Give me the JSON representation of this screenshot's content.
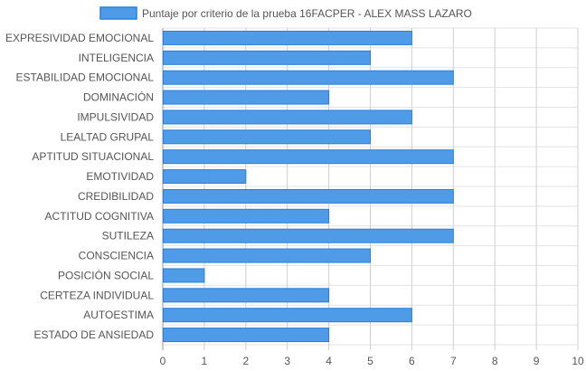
{
  "chart_data": {
    "type": "bar",
    "orientation": "horizontal",
    "categories": [
      "EXPRESIVIDAD EMOCIONAL",
      "INTELIGENCIA",
      "ESTABILIDAD EMOCIONAL",
      "DOMINACIÓN",
      "IMPULSIVIDAD",
      "LEALTAD GRUPAL",
      "APTITUD SITUACIONAL",
      "EMOTIVIDAD",
      "CREDIBILIDAD",
      "ACTITUD COGNITIVA",
      "SUTILEZA",
      "CONSCIENCIA",
      "POSICIÓN SOCIAL",
      "CERTEZA INDIVIDUAL",
      "AUTOESTIMA",
      "ESTADO DE ANSIEDAD"
    ],
    "series": [
      {
        "name": "Puntaje por criterio de la prueba 16FACPER - ALEX MASS LAZARO",
        "values": [
          6,
          5,
          7,
          4,
          6,
          5,
          7,
          2,
          7,
          4,
          7,
          5,
          1,
          4,
          6,
          4
        ],
        "color": "#4f9be8",
        "border_color": "#2a7fd8"
      }
    ],
    "x_ticks": [
      "0",
      "1",
      "2",
      "3",
      "4",
      "5",
      "6",
      "7",
      "8",
      "9",
      "10"
    ],
    "xlim": [
      0,
      10
    ],
    "grid": true,
    "legend_position": "top",
    "title": "",
    "xlabel": "",
    "ylabel": ""
  }
}
